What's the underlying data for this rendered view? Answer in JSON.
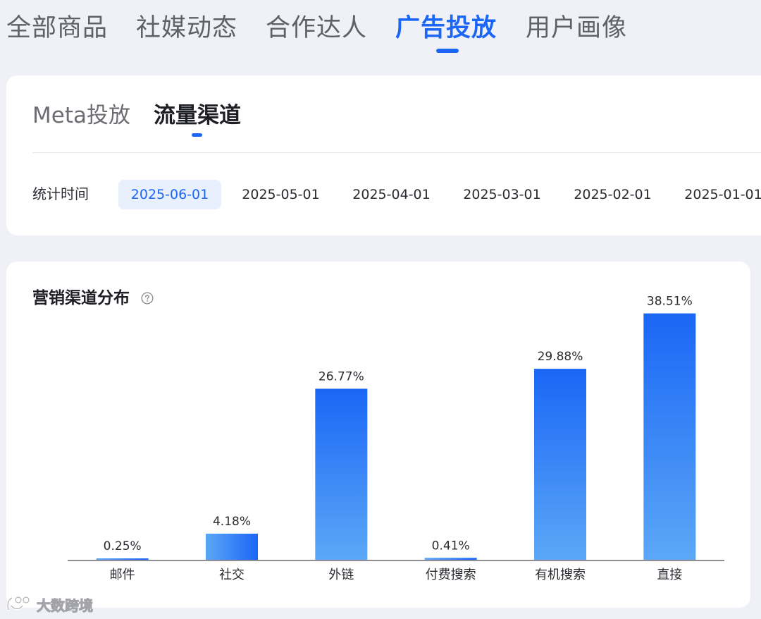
{
  "top_tabs": [
    {
      "label": "全部商品",
      "active": false
    },
    {
      "label": "社媒动态",
      "active": false
    },
    {
      "label": "合作达人",
      "active": false
    },
    {
      "label": "广告投放",
      "active": true
    },
    {
      "label": "用户画像",
      "active": false
    }
  ],
  "sub_tabs": [
    {
      "label": "Meta投放",
      "active": false
    },
    {
      "label": "流量渠道",
      "active": true
    }
  ],
  "time_filter": {
    "label": "统计时间",
    "dates": [
      "2025-06-01",
      "2025-05-01",
      "2025-04-01",
      "2025-03-01",
      "2025-02-01",
      "2025-01-01"
    ],
    "selected": "2025-06-01"
  },
  "chart_card": {
    "title": "营销渠道分布",
    "help_icon": "question-circle-icon"
  },
  "chart_data": {
    "type": "bar",
    "title": "营销渠道分布",
    "categories": [
      "邮件",
      "社交",
      "外链",
      "付费搜索",
      "有机搜索",
      "直接"
    ],
    "values": [
      0.25,
      4.18,
      26.77,
      0.41,
      29.88,
      38.51
    ],
    "value_labels": [
      "0.25%",
      "4.18%",
      "26.77%",
      "0.41%",
      "29.88%",
      "38.51%"
    ],
    "unit": "%",
    "ylim": [
      0,
      40
    ],
    "grid": false,
    "legend": "none",
    "colors": {
      "bar_top": "#1b66f5",
      "bar_bottom": "#5ba8f7",
      "axis": "#8e8f95"
    }
  },
  "watermark": {
    "text": "大数跨境"
  },
  "colors": {
    "accent": "#1b66f5",
    "background": "#f0f1f6",
    "card": "#ffffff"
  }
}
